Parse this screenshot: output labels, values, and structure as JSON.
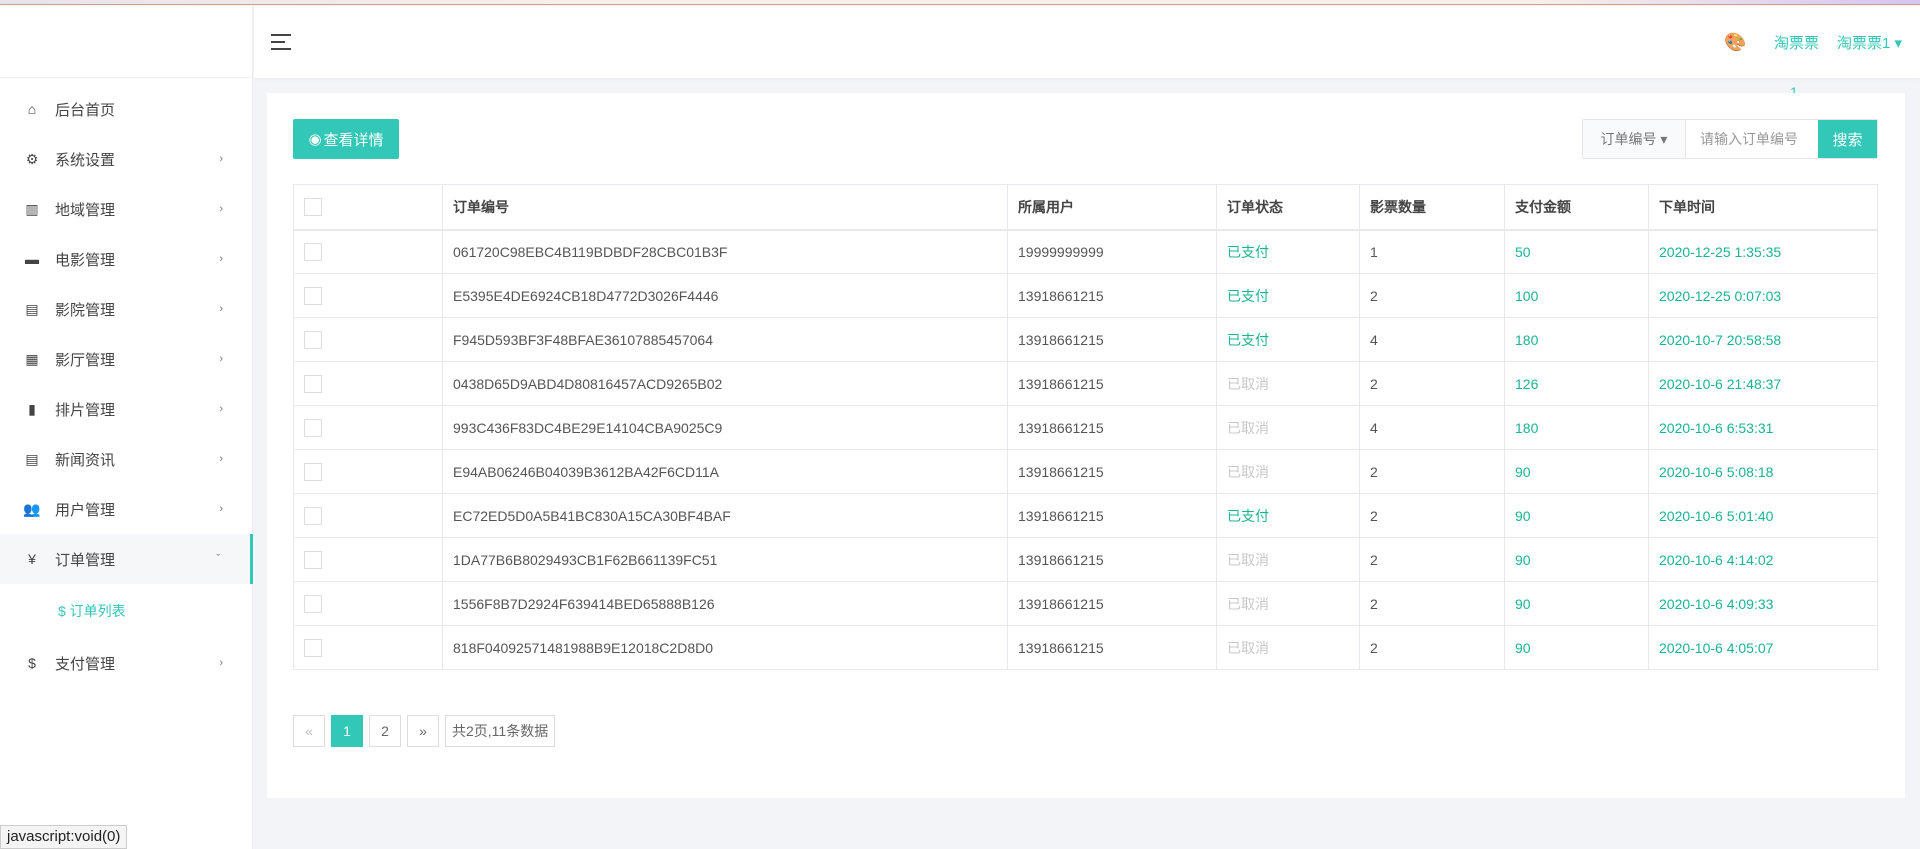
{
  "sidebar": {
    "items": [
      {
        "label": "后台首页",
        "icon": "⌂",
        "chev": ""
      },
      {
        "label": "系统设置",
        "icon": "⚙",
        "chev": "›"
      },
      {
        "label": "地域管理",
        "icon": "▥",
        "chev": "›"
      },
      {
        "label": "电影管理",
        "icon": "▬",
        "chev": "›"
      },
      {
        "label": "影院管理",
        "icon": "▤",
        "chev": "›"
      },
      {
        "label": "影厅管理",
        "icon": "▦",
        "chev": "›"
      },
      {
        "label": "排片管理",
        "icon": "▮",
        "chev": "›"
      },
      {
        "label": "新闻资讯",
        "icon": "▤",
        "chev": "›"
      },
      {
        "label": "用户管理",
        "icon": "👥",
        "chev": "›"
      },
      {
        "label": "订单管理",
        "icon": "¥",
        "chev": "ˇ"
      },
      {
        "label": "支付管理",
        "icon": "$",
        "chev": "›"
      }
    ],
    "sub_item": "$ 订单列表"
  },
  "header": {
    "user1": "淘票票",
    "user2": "淘票票1 ▾",
    "badge": "1"
  },
  "toolbar": {
    "detail": "查看详情",
    "select": "订单编号 ▾",
    "placeholder": "请输入订单编号",
    "search": "搜索"
  },
  "table": {
    "headers": [
      "订单编号",
      "所属用户",
      "订单状态",
      "影票数量",
      "支付金额",
      "下单时间"
    ],
    "rows": [
      [
        "061720C98EBC4B119BDBDF28CBC01B3F",
        "19999999999",
        "已支付",
        "1",
        "50",
        "2020-12-25 1:35:35"
      ],
      [
        "E5395E4DE6924CB18D4772D3026F4446",
        "13918661215",
        "已支付",
        "2",
        "100",
        "2020-12-25 0:07:03"
      ],
      [
        "F945D593BF3F48BFAE36107885457064",
        "13918661215",
        "已支付",
        "4",
        "180",
        "2020-10-7 20:58:58"
      ],
      [
        "0438D65D9ABD4D80816457ACD9265B02",
        "13918661215",
        "已取消",
        "2",
        "126",
        "2020-10-6 21:48:37"
      ],
      [
        "993C436F83DC4BE29E14104CBA9025C9",
        "13918661215",
        "已取消",
        "4",
        "180",
        "2020-10-6 6:53:31"
      ],
      [
        "E94AB06246B04039B3612BA42F6CD11A",
        "13918661215",
        "已取消",
        "2",
        "90",
        "2020-10-6 5:08:18"
      ],
      [
        "EC72ED5D0A5B41BC830A15CA30BF4BAF",
        "13918661215",
        "已支付",
        "2",
        "90",
        "2020-10-6 5:01:40"
      ],
      [
        "1DA77B6B8029493CB1F62B661139FC51",
        "13918661215",
        "已取消",
        "2",
        "90",
        "2020-10-6 4:14:02"
      ],
      [
        "1556F8B7D2924F639414BED65888B126",
        "13918661215",
        "已取消",
        "2",
        "90",
        "2020-10-6 4:09:33"
      ],
      [
        "818F04092571481988B9E12018C2D8D0",
        "13918661215",
        "已取消",
        "2",
        "90",
        "2020-10-6 4:05:07"
      ]
    ]
  },
  "pager": {
    "prev": "«",
    "pages": [
      "1",
      "2"
    ],
    "next": "»",
    "info": "共2页,11条数据",
    "current": "1"
  },
  "statusbar": "javascript:void(0)",
  "colors": {
    "accent": "#33c7b7",
    "paid": "#1ab394",
    "cancelled": "#c8c8c8"
  }
}
